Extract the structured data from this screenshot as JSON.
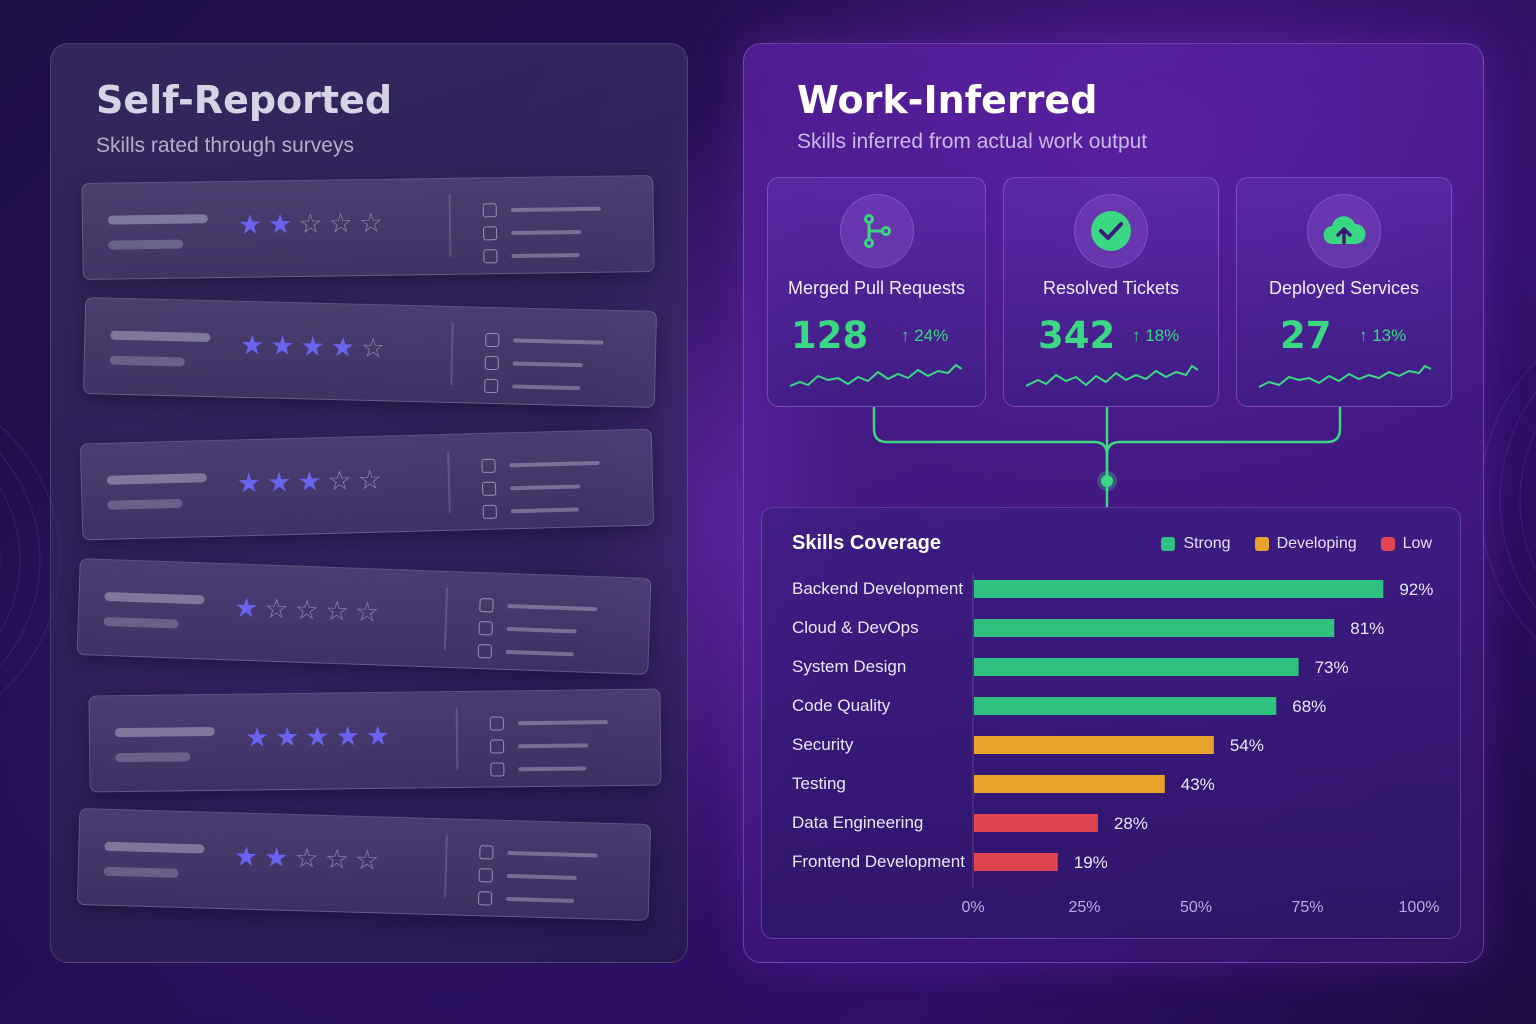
{
  "colors": {
    "strong": "#2ec27e",
    "developing": "#e9a22b",
    "low": "#e0444e",
    "star_filled": "#6a63ef",
    "accent_green": "#3ad883"
  },
  "self_reported": {
    "title": "Self-Reported",
    "subtitle": "Skills rated through surveys",
    "cards": [
      {
        "rating": 2,
        "max": 5
      },
      {
        "rating": 4,
        "max": 5
      },
      {
        "rating": 3,
        "max": 5
      },
      {
        "rating": 1,
        "max": 5
      },
      {
        "rating": 5,
        "max": 5
      },
      {
        "rating": 2,
        "max": 5
      }
    ]
  },
  "work_inferred": {
    "title": "Work-Inferred",
    "subtitle": "Skills inferred from actual work output",
    "metrics": [
      {
        "label": "Merged Pull Requests",
        "value": "128",
        "change": "↑ 24%",
        "icon": "git-merge-icon"
      },
      {
        "label": "Resolved Tickets",
        "value": "342",
        "change": "↑ 18%",
        "icon": "check-circle-icon"
      },
      {
        "label": "Deployed Services",
        "value": "27",
        "change": "↑ 13%",
        "icon": "cloud-upload-icon"
      }
    ]
  },
  "chart_data": {
    "type": "bar",
    "orientation": "horizontal",
    "title": "Skills Coverage",
    "legend": [
      "Strong",
      "Developing",
      "Low"
    ],
    "legend_position": "top-right",
    "categories": [
      "Backend Development",
      "Cloud & DevOps",
      "System Design",
      "Code Quality",
      "Security",
      "Testing",
      "Data Engineering",
      "Frontend Development"
    ],
    "values": [
      92,
      81,
      73,
      68,
      54,
      43,
      28,
      19
    ],
    "levels": [
      "Strong",
      "Strong",
      "Strong",
      "Strong",
      "Developing",
      "Developing",
      "Low",
      "Low"
    ],
    "value_labels": [
      "92%",
      "81%",
      "73%",
      "68%",
      "54%",
      "43%",
      "28%",
      "19%"
    ],
    "xlim": [
      0,
      100
    ],
    "x_ticks": [
      "0%",
      "25%",
      "50%",
      "75%",
      "100%"
    ],
    "grid": false
  }
}
